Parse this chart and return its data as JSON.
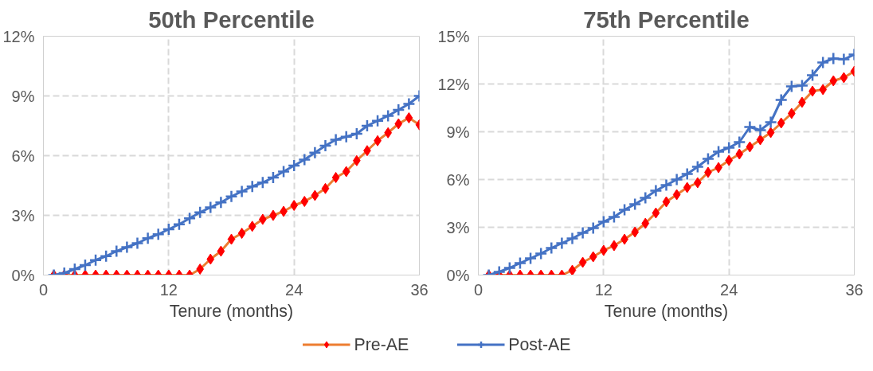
{
  "chart_data": [
    {
      "type": "line",
      "title": "50th Percentile",
      "xlabel": "Tenure (months)",
      "xlim": [
        0,
        36
      ],
      "xticks": [
        0,
        12,
        24,
        36
      ],
      "ylim": [
        0,
        12
      ],
      "yticks": [
        {
          "value": 0,
          "label": "0%"
        },
        {
          "value": 3,
          "label": "3%"
        },
        {
          "value": 6,
          "label": "6%"
        },
        {
          "value": 9,
          "label": "9%"
        },
        {
          "value": 12,
          "label": "12%"
        }
      ],
      "grid": true,
      "legend": "bottom",
      "line_style": "solid",
      "x": [
        1,
        2,
        3,
        4,
        5,
        6,
        7,
        8,
        9,
        10,
        11,
        12,
        13,
        14,
        15,
        16,
        17,
        18,
        19,
        20,
        21,
        22,
        23,
        24,
        25,
        26,
        27,
        28,
        29,
        30,
        31,
        32,
        33,
        34,
        35,
        36
      ],
      "series": [
        {
          "name": "Pre-AE",
          "color": "#ed7d31",
          "marker": "diamond",
          "colors": [
            "#ff0000",
            "#ff0000",
            "#ff0000",
            "#ff0000",
            "#ff0000",
            "#ff0000",
            "#ff0000",
            "#ff0000",
            "#ff0000",
            "#ff0000",
            "#ff0000",
            "#ff0000",
            "#ff0000",
            "#ff0000",
            "#ff0000",
            "#ff0000",
            "#ff0000",
            "#ff0000",
            "#ff0000",
            "#ff0000",
            "#ff0000",
            "#ff0000",
            "#ff0000",
            "#ff0000",
            "#ff0000",
            "#ff0000",
            "#ff0000",
            "#ff0000",
            "#ff0000",
            "#ff0000",
            "#ff0000",
            "#ff0000",
            "#ff0000",
            "#ff0000",
            "#ff0000",
            "#ff0000"
          ],
          "values": [
            0,
            0,
            0,
            0,
            0,
            0,
            0,
            0,
            0,
            0,
            0,
            0,
            0,
            0,
            0.3,
            0.8,
            1.2,
            1.8,
            2.1,
            2.45,
            2.8,
            3.0,
            3.2,
            3.5,
            3.7,
            4.0,
            4.35,
            4.9,
            5.2,
            5.75,
            6.25,
            6.75,
            7.15,
            7.6,
            7.9,
            7.55
          ]
        },
        {
          "name": "Post-AE",
          "color": "#4472c4",
          "marker": "cross",
          "values": [
            0,
            0.1,
            0.3,
            0.5,
            0.75,
            0.95,
            1.2,
            1.4,
            1.6,
            1.85,
            2.05,
            2.3,
            2.55,
            2.85,
            3.15,
            3.4,
            3.65,
            3.95,
            4.2,
            4.45,
            4.65,
            4.9,
            5.2,
            5.5,
            5.8,
            6.15,
            6.5,
            6.8,
            6.95,
            7.1,
            7.5,
            7.75,
            8.0,
            8.3,
            8.6,
            9.0
          ]
        }
      ]
    },
    {
      "type": "line",
      "title": "75th Percentile",
      "xlabel": "Tenure (months)",
      "xlim": [
        0,
        36
      ],
      "xticks": [
        0,
        12,
        24,
        36
      ],
      "ylim": [
        0,
        15
      ],
      "yticks": [
        {
          "value": 0,
          "label": "0%"
        },
        {
          "value": 3,
          "label": "3%"
        },
        {
          "value": 6,
          "label": "6%"
        },
        {
          "value": 9,
          "label": "9%"
        },
        {
          "value": 12,
          "label": "12%"
        },
        {
          "value": 15,
          "label": "15%"
        }
      ],
      "grid": true,
      "legend": "bottom",
      "line_style": "solid",
      "x": [
        1,
        2,
        3,
        4,
        5,
        6,
        7,
        8,
        9,
        10,
        11,
        12,
        13,
        14,
        15,
        16,
        17,
        18,
        19,
        20,
        21,
        22,
        23,
        24,
        25,
        26,
        27,
        28,
        29,
        30,
        31,
        32,
        33,
        34,
        35,
        36
      ],
      "series": [
        {
          "name": "Pre-AE",
          "color": "#ed7d31",
          "marker": "diamond",
          "colors": [
            "#ff0000",
            "#ff0000",
            "#ff0000",
            "#ff0000",
            "#ff0000",
            "#ff0000",
            "#ff0000",
            "#ff0000",
            "#ff0000",
            "#ff0000",
            "#ff0000",
            "#ff0000",
            "#ff0000",
            "#ff0000",
            "#ff0000",
            "#ff0000",
            "#ff0000",
            "#ff0000",
            "#ff0000",
            "#ff0000",
            "#ff0000",
            "#ff0000",
            "#ff0000",
            "#ff0000",
            "#ff0000",
            "#ff0000",
            "#ff0000",
            "#ff0000",
            "#ff0000",
            "#ff0000",
            "#ff0000",
            "#ff0000",
            "#ff0000",
            "#ff0000",
            "#ff0000",
            "#ff0000"
          ],
          "values": [
            0,
            0,
            0,
            0,
            0,
            0,
            0,
            0,
            0.3,
            0.8,
            1.15,
            1.55,
            1.85,
            2.25,
            2.7,
            3.25,
            3.9,
            4.6,
            5.05,
            5.5,
            5.8,
            6.45,
            6.75,
            7.2,
            7.6,
            8.05,
            8.5,
            8.95,
            9.55,
            10.15,
            10.85,
            11.55,
            11.65,
            12.2,
            12.4,
            12.8
          ]
        },
        {
          "name": "Post-AE",
          "color": "#4472c4",
          "marker": "cross",
          "values": [
            0,
            0.2,
            0.45,
            0.75,
            1.05,
            1.35,
            1.7,
            2.0,
            2.3,
            2.65,
            2.95,
            3.35,
            3.65,
            4.1,
            4.45,
            4.85,
            5.3,
            5.65,
            6.0,
            6.35,
            6.8,
            7.3,
            7.75,
            8.0,
            8.35,
            9.3,
            9.1,
            9.6,
            11.0,
            11.85,
            11.9,
            12.55,
            13.35,
            13.6,
            13.55,
            13.85
          ]
        }
      ]
    }
  ]
}
